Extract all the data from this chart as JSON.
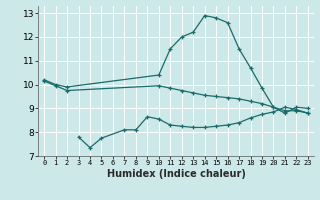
{
  "xlabel": "Humidex (Indice chaleur)",
  "ylabel": "",
  "xlim": [
    -0.5,
    23.5
  ],
  "ylim": [
    7.0,
    13.3
  ],
  "yticks": [
    7,
    8,
    9,
    10,
    11,
    12,
    13
  ],
  "xticks": [
    0,
    1,
    2,
    3,
    4,
    5,
    6,
    7,
    8,
    9,
    10,
    11,
    12,
    13,
    14,
    15,
    16,
    17,
    18,
    19,
    20,
    21,
    22,
    23
  ],
  "bg_color": "#cde8e8",
  "grid_color": "#ffffff",
  "line_color": "#1a6b6b",
  "series1_x": [
    0,
    1,
    2,
    10,
    11,
    12,
    13,
    14,
    15,
    16,
    17,
    18,
    19,
    20,
    21,
    22,
    23
  ],
  "series1_y": [
    10.2,
    10.0,
    9.9,
    10.4,
    11.5,
    12.0,
    12.2,
    12.9,
    12.8,
    12.6,
    11.5,
    10.7,
    9.85,
    9.05,
    8.8,
    9.05,
    9.0
  ],
  "series2_x": [
    0,
    1,
    2,
    10,
    11,
    12,
    13,
    14,
    15,
    16,
    17,
    18,
    19,
    20,
    21,
    22,
    23
  ],
  "series2_y": [
    10.15,
    9.95,
    9.75,
    9.95,
    9.85,
    9.75,
    9.65,
    9.55,
    9.5,
    9.45,
    9.4,
    9.3,
    9.2,
    9.05,
    8.9,
    8.9,
    8.8
  ],
  "series3_x": [
    3,
    4,
    5,
    7,
    8,
    9,
    10,
    11,
    12,
    13,
    14,
    15,
    16,
    17,
    18,
    19,
    20,
    21,
    22,
    23
  ],
  "series3_y": [
    7.8,
    7.35,
    7.75,
    8.1,
    8.1,
    8.65,
    8.55,
    8.3,
    8.25,
    8.2,
    8.2,
    8.25,
    8.3,
    8.4,
    8.6,
    8.75,
    8.85,
    9.05,
    8.95,
    8.8
  ]
}
